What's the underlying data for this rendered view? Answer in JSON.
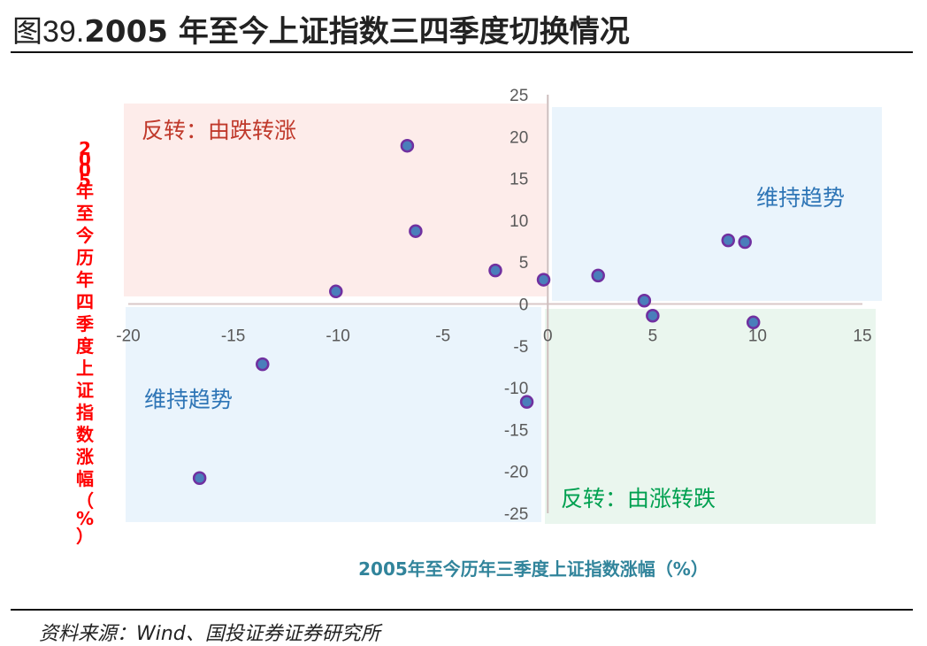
{
  "header": {
    "prefix": "图39.",
    "title": "2005 年至今上证指数三四季度切换情况"
  },
  "source": "资料来源：Wind、国投证券证券研究所",
  "chart_data": {
    "type": "scatter",
    "xlabel": "2005年至今历年三季度上证指数涨幅（%）",
    "ylabel": "2005年至今历年四季度上证指数涨幅（%）",
    "xlim": [
      -20,
      15
    ],
    "ylim": [
      -25,
      25
    ],
    "xticks": [
      -20,
      -15,
      -10,
      -5,
      0,
      5,
      10,
      15
    ],
    "yticks": [
      25,
      20,
      15,
      10,
      5,
      0,
      -5,
      -10,
      -15,
      -20,
      -25
    ],
    "grid": false,
    "quadrant_labels": {
      "top_left": "反转：由跌转涨",
      "top_right": "维持趋势",
      "bottom_left": "维持趋势",
      "bottom_right": "反转：由涨转跌"
    },
    "colors": {
      "point_fill": "#4a7ebb",
      "point_stroke": "#7030a0",
      "top_left": "#fdecea",
      "top_right": "#eaf4fc",
      "bottom_left": "#eaf4fc",
      "bottom_right": "#eaf6ee",
      "ylabel": "#ff0000",
      "xlabel": "#31849b"
    },
    "points": [
      {
        "x": -6.7,
        "y": 18.9
      },
      {
        "x": -6.3,
        "y": 8.7
      },
      {
        "x": -2.5,
        "y": 4.0
      },
      {
        "x": -10.1,
        "y": 1.5
      },
      {
        "x": -0.2,
        "y": 2.9
      },
      {
        "x": 2.4,
        "y": 3.4
      },
      {
        "x": 4.6,
        "y": 0.4
      },
      {
        "x": 5.0,
        "y": -1.4
      },
      {
        "x": 8.6,
        "y": 7.6
      },
      {
        "x": 9.4,
        "y": 7.4
      },
      {
        "x": 9.8,
        "y": -2.2
      },
      {
        "x": -13.6,
        "y": -7.2
      },
      {
        "x": -1.0,
        "y": -11.7
      },
      {
        "x": -16.6,
        "y": -20.8
      }
    ]
  }
}
